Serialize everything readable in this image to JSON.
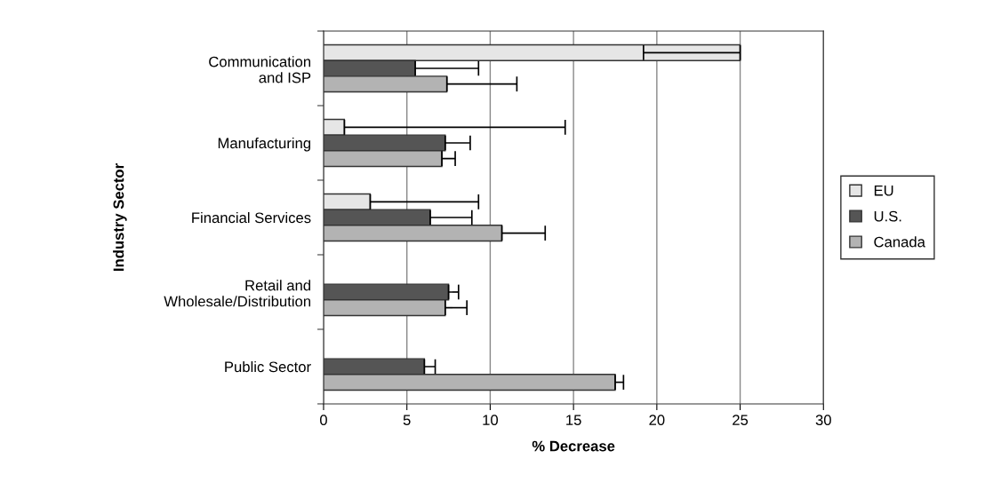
{
  "chart_data": {
    "type": "bar",
    "orientation": "horizontal",
    "xlabel": "% Decrease",
    "ylabel": "Industry Sector",
    "categories": [
      "Communication\nand ISP",
      "Manufacturing",
      "Financial Services",
      "Retail and\nWholesale/Distribution",
      "Public Sector"
    ],
    "series": [
      {
        "name": "EU",
        "color": "#e6e6e6",
        "values": [
          25,
          1.25,
          2.8,
          null,
          null
        ],
        "errors": [
          [
            19.2,
            25
          ],
          [
            1.25,
            14.5
          ],
          [
            2.8,
            9.3
          ],
          null,
          null
        ]
      },
      {
        "name": "U.S.",
        "color": "#555555",
        "values": [
          5.5,
          7.3,
          6.4,
          7.5,
          6.05
        ],
        "errors": [
          [
            5.5,
            9.3
          ],
          [
            7.3,
            8.8
          ],
          [
            6.4,
            8.9
          ],
          [
            7.5,
            8.1
          ],
          [
            6.05,
            6.7
          ]
        ]
      },
      {
        "name": "Canada",
        "color": "#b3b3b3",
        "values": [
          7.4,
          7.1,
          10.7,
          7.3,
          17.5
        ],
        "errors": [
          [
            7.4,
            11.6
          ],
          [
            7.1,
            7.9
          ],
          [
            10.7,
            13.3
          ],
          [
            7.3,
            8.6
          ],
          [
            17.5,
            18.0
          ]
        ]
      }
    ],
    "xlim": [
      0,
      30
    ],
    "xticks": [
      0,
      5,
      10,
      15,
      20,
      25,
      30
    ],
    "grid": "x",
    "legend": "right"
  }
}
